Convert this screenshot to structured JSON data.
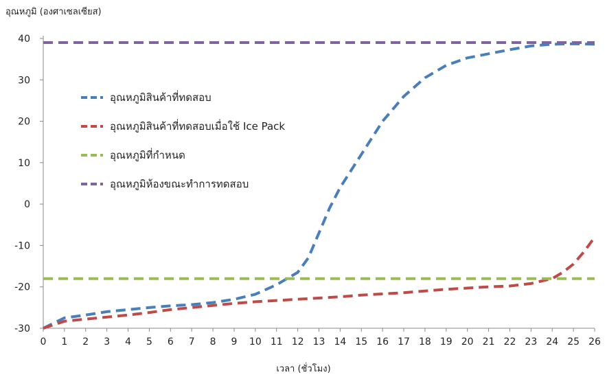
{
  "chart_data": {
    "type": "line",
    "title": "",
    "ylabel": "อุณหภูมิ (องศาเซลเซียส)",
    "xlabel": "เวลา (ชั่วโมง)",
    "xlim": [
      0,
      26
    ],
    "ylim": [
      -30,
      40
    ],
    "xticks": [
      0,
      1,
      2,
      3,
      4,
      5,
      6,
      7,
      8,
      9,
      10,
      11,
      12,
      13,
      14,
      15,
      16,
      17,
      18,
      19,
      20,
      21,
      22,
      23,
      24,
      25,
      26
    ],
    "yticks": [
      40,
      30,
      20,
      10,
      0,
      -10,
      -20,
      -30
    ],
    "grid": false,
    "legend_position": "upper-left",
    "series": [
      {
        "name": "อุณหภูมิสินค้าที่ทดสอบ",
        "color": "#4a7ebb",
        "x": [
          0,
          1,
          2,
          3,
          4,
          5,
          6,
          7,
          8,
          9,
          10,
          11,
          12,
          12.5,
          13,
          13.5,
          14,
          15,
          16,
          17,
          18,
          19,
          20,
          21,
          22,
          23,
          24,
          25,
          26
        ],
        "y": [
          -30,
          -27.5,
          -26.8,
          -26,
          -25.5,
          -25,
          -24.6,
          -24.3,
          -23.8,
          -23,
          -21.8,
          -19.5,
          -16.5,
          -13,
          -7,
          -1,
          4,
          12,
          20,
          26,
          30.5,
          33.5,
          35.3,
          36.3,
          37.3,
          38.2,
          38.6,
          38.7,
          38.6
        ]
      },
      {
        "name": "อุณหภูมิสินค้าที่ทดสอบเมื่อใช้ Ice Pack",
        "color": "#be4b48",
        "x": [
          0,
          1,
          2,
          3,
          4,
          5,
          6,
          7,
          8,
          9,
          10,
          11,
          12,
          13,
          14,
          15,
          16,
          17,
          18,
          19,
          20,
          21,
          22,
          23,
          24,
          24.5,
          25,
          25.5,
          26
        ],
        "y": [
          -30,
          -28.3,
          -27.8,
          -27.3,
          -26.8,
          -26.2,
          -25.5,
          -25,
          -24.5,
          -24,
          -23.6,
          -23.3,
          -23,
          -22.7,
          -22.4,
          -22,
          -21.7,
          -21.4,
          -21,
          -20.6,
          -20.3,
          -20,
          -19.8,
          -19.2,
          -18,
          -16.5,
          -14.5,
          -11.5,
          -8
        ]
      },
      {
        "name": "อุณหภูมิที่กำหนด",
        "color": "#9bbb59",
        "x": [
          0,
          26
        ],
        "y": [
          -18,
          -18
        ]
      },
      {
        "name": "อุณหภูมิห้องขณะทำการทดสอบ",
        "color": "#8064a2",
        "x": [
          0,
          26
        ],
        "y": [
          39,
          39
        ]
      }
    ]
  }
}
